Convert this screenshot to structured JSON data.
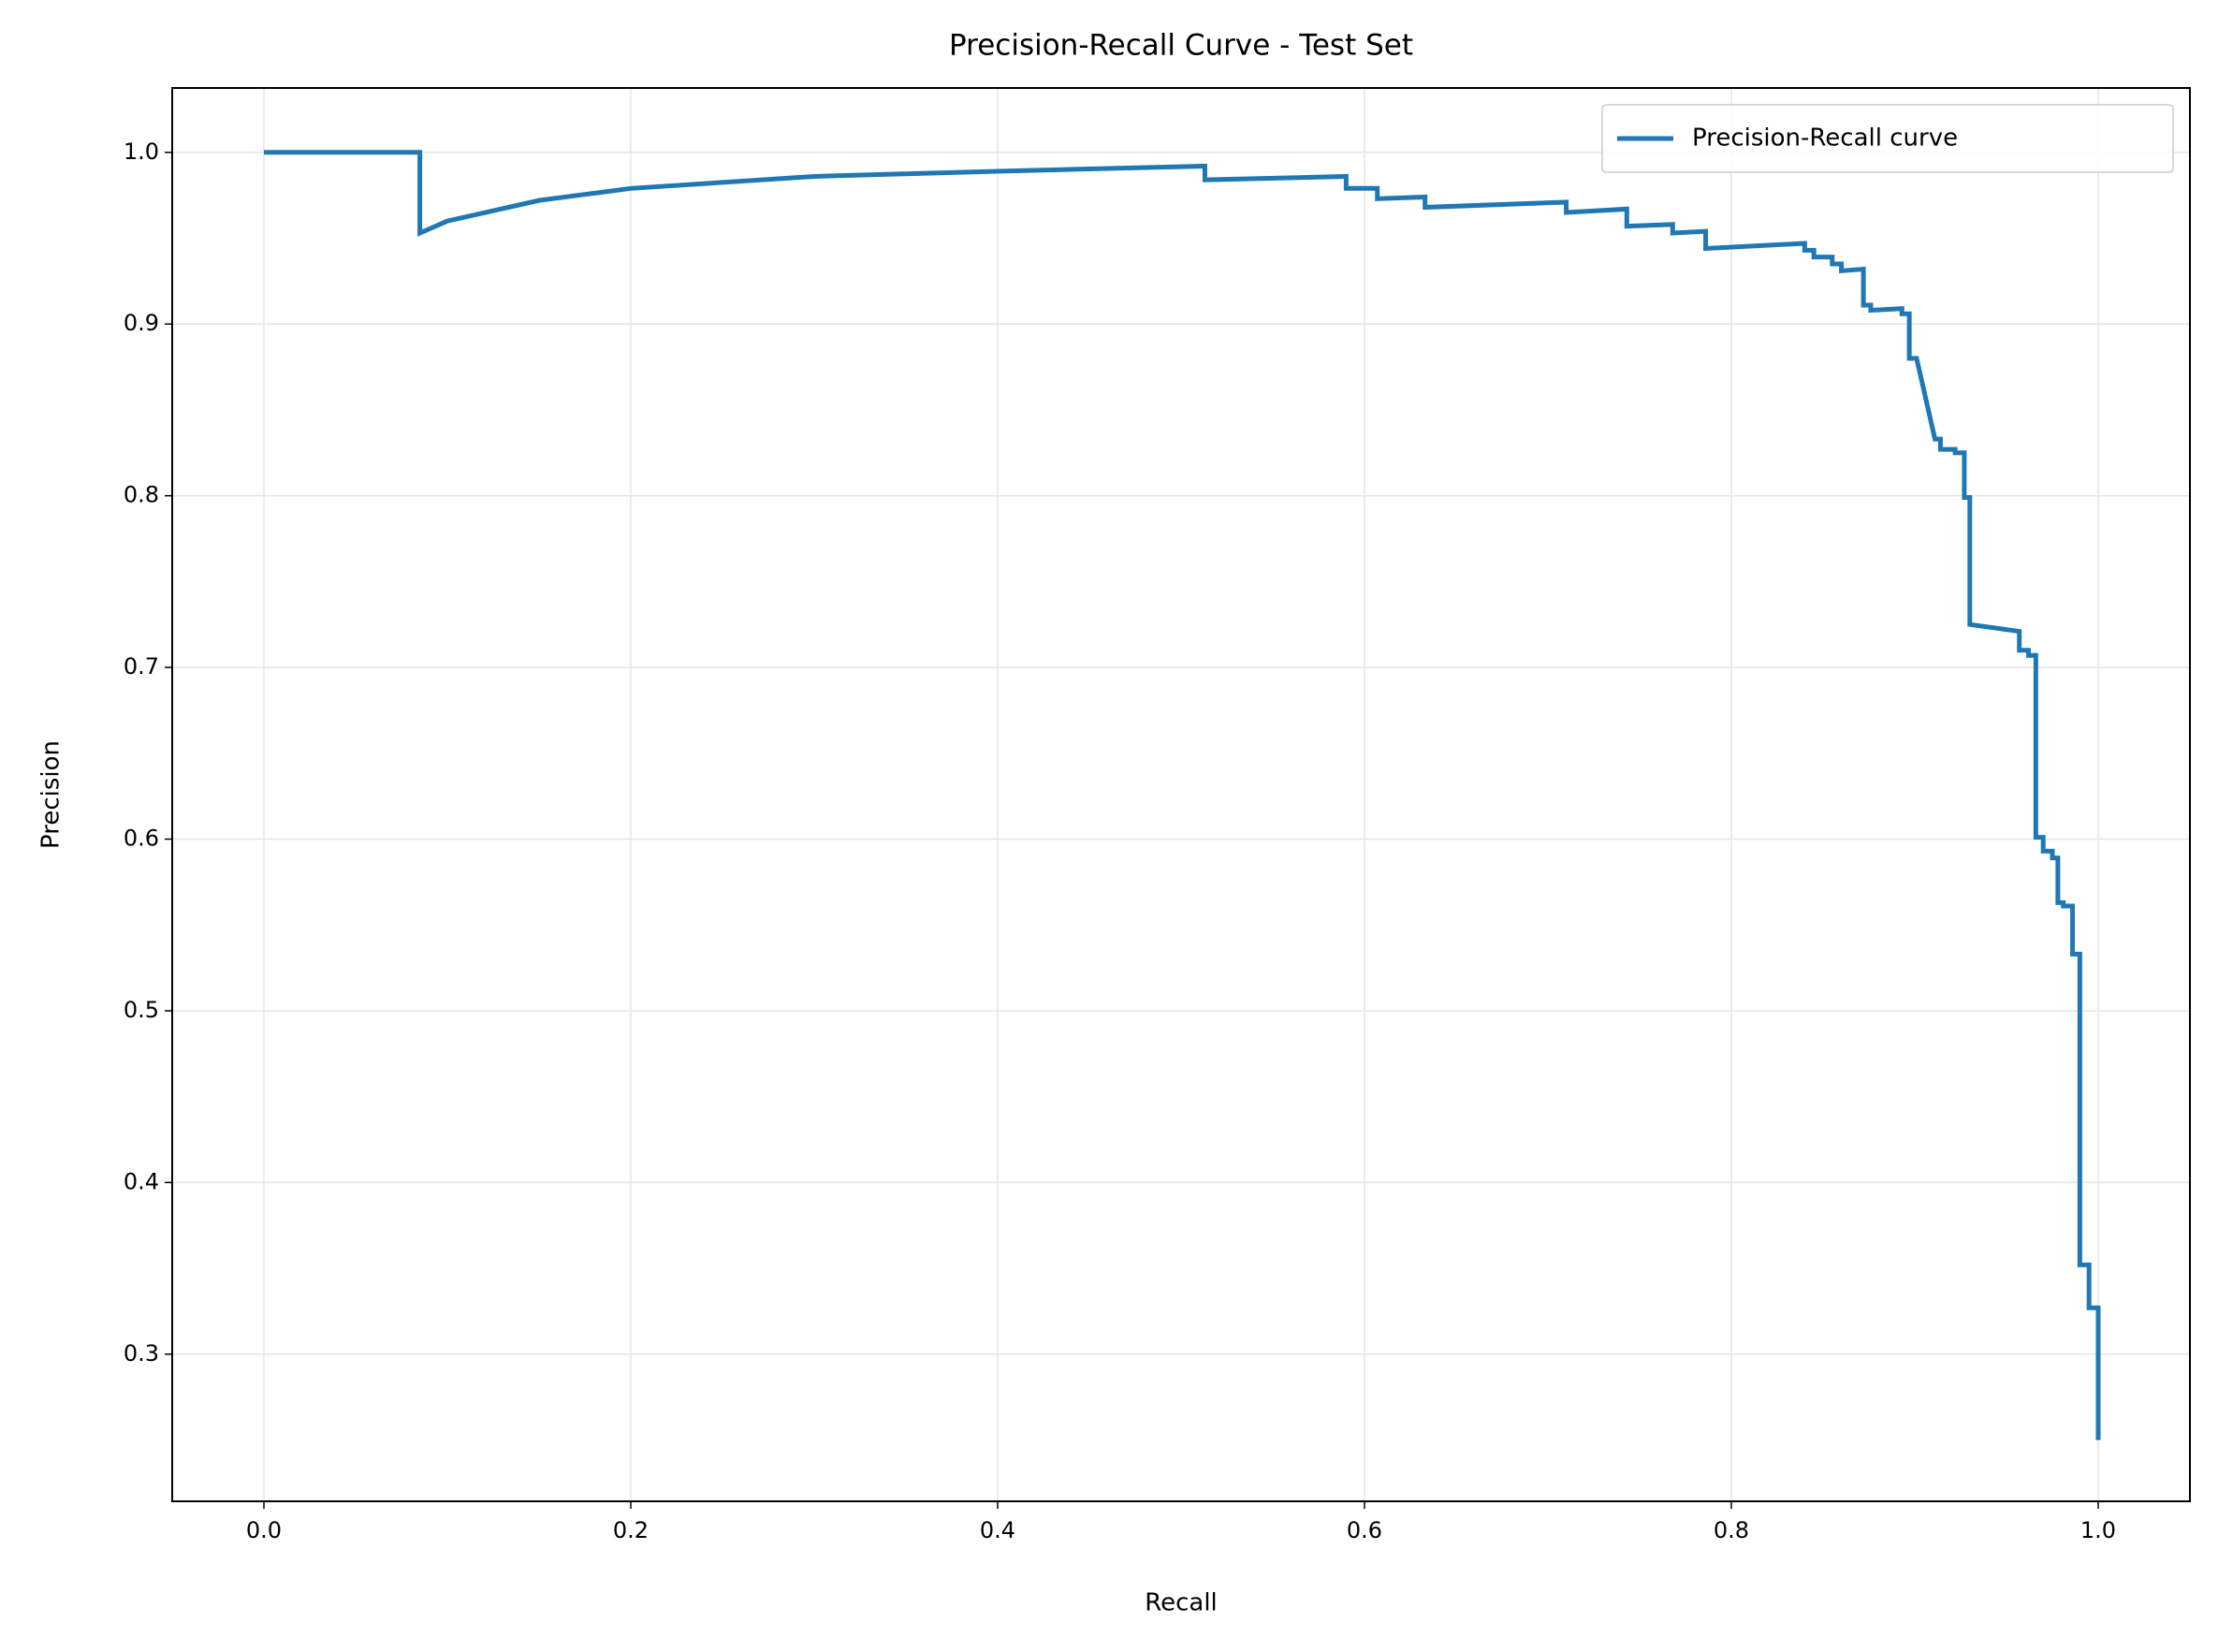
{
  "chart_data": {
    "type": "line",
    "title": "Precision-Recall Curve - Test Set",
    "x_label": "Recall",
    "y_label": "Precision",
    "x": [
      0,
      0.085,
      0.085,
      0.1,
      0.15,
      0.2,
      0.3,
      0.4,
      0.513,
      0.513,
      0.59,
      0.59,
      0.607,
      0.607,
      0.633,
      0.633,
      0.71,
      0.71,
      0.743,
      0.743,
      0.768,
      0.768,
      0.786,
      0.786,
      0.84,
      0.84,
      0.845,
      0.845,
      0.855,
      0.855,
      0.86,
      0.86,
      0.872,
      0.872,
      0.876,
      0.876,
      0.893,
      0.893,
      0.897,
      0.897,
      0.901,
      0.911,
      0.914,
      0.914,
      0.922,
      0.922,
      0.927,
      0.927,
      0.93,
      0.93,
      0.957,
      0.957,
      0.962,
      0.962,
      0.966,
      0.966,
      0.97,
      0.97,
      0.975,
      0.975,
      0.978,
      0.978,
      0.981,
      0.981,
      0.986,
      0.986,
      0.99,
      0.99,
      0.995,
      0.995,
      1.0,
      1.0
    ],
    "series": [
      {
        "name": "Precision-Recall curve",
        "color": "#1f77b4",
        "values": [
          1.0,
          1.0,
          0.953,
          0.96,
          0.972,
          0.979,
          0.986,
          0.989,
          0.992,
          0.984,
          0.986,
          0.979,
          0.979,
          0.973,
          0.974,
          0.968,
          0.971,
          0.965,
          0.967,
          0.957,
          0.958,
          0.953,
          0.954,
          0.944,
          0.947,
          0.943,
          0.943,
          0.939,
          0.939,
          0.935,
          0.935,
          0.931,
          0.932,
          0.911,
          0.911,
          0.908,
          0.909,
          0.906,
          0.906,
          0.88,
          0.88,
          0.833,
          0.833,
          0.827,
          0.827,
          0.825,
          0.825,
          0.799,
          0.799,
          0.725,
          0.721,
          0.71,
          0.71,
          0.707,
          0.707,
          0.601,
          0.601,
          0.593,
          0.593,
          0.589,
          0.589,
          0.563,
          0.563,
          0.561,
          0.561,
          0.533,
          0.533,
          0.352,
          0.352,
          0.327,
          0.327,
          0.25
        ]
      }
    ],
    "xlim": [
      -0.05,
      1.05
    ],
    "ylim": [
      0.2143,
      1.0375
    ],
    "xticks": [
      {
        "value": 0,
        "label": "0.0"
      },
      0.2,
      0.4,
      0.6,
      0.8,
      {
        "value": 1,
        "label": "1.0"
      }
    ],
    "yticks": [
      0.3,
      0.4,
      0.5,
      0.6,
      0.7,
      0.8,
      0.9,
      {
        "value": 1,
        "label": "1.0"
      }
    ],
    "grid": true,
    "legend": "upper right"
  }
}
